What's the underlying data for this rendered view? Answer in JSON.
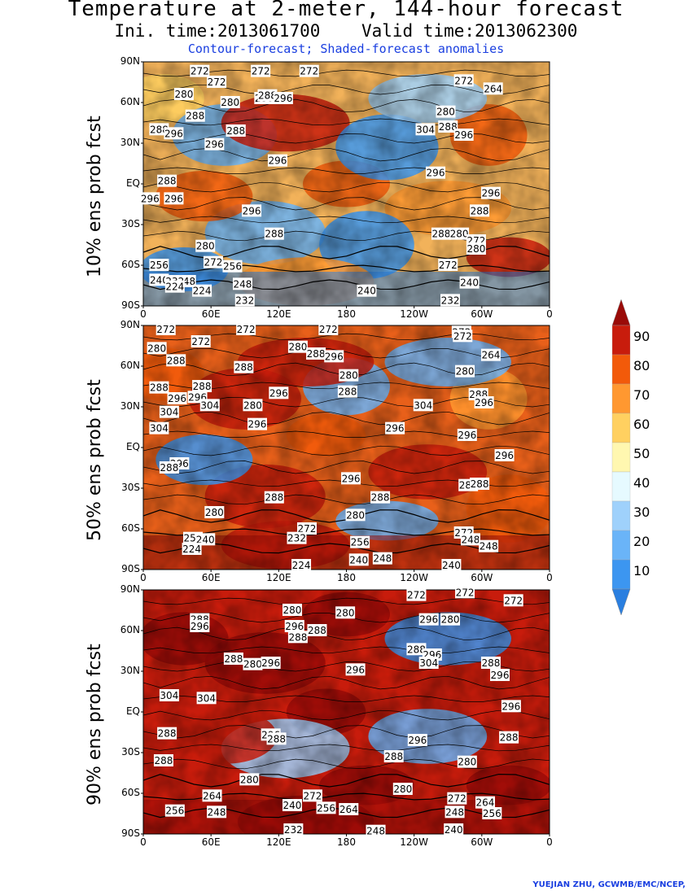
{
  "header": {
    "title": "Temperature at 2-meter, 144-hour forecast",
    "subtitle": "Ini. time:2013061700    Valid time:2013062300",
    "description": "Contour-forecast; Shaded-forecast anomalies"
  },
  "credit": "YUEJIAN ZHU, GCWMB/EMC/NCEP,",
  "chart_data": [
    {
      "type": "heatmap",
      "ylabel": "10% ens prob fcst",
      "yticks": [
        "90N",
        "60N",
        "30N",
        "EQ",
        "30S",
        "60S",
        "90S"
      ],
      "xticks": [
        "0",
        "60E",
        "120E",
        "180",
        "120W",
        "60W",
        "0"
      ],
      "contour_labels": [
        {
          "text": "272",
          "lon": 50,
          "lat": 83
        },
        {
          "text": "272",
          "lon": 65,
          "lat": 75
        },
        {
          "text": "272",
          "lon": 104,
          "lat": 83
        },
        {
          "text": "272",
          "lon": 147,
          "lat": 83
        },
        {
          "text": "272",
          "lon": -76,
          "lat": 76
        },
        {
          "text": "264",
          "lon": -50,
          "lat": 70
        },
        {
          "text": "280",
          "lon": 36,
          "lat": 66
        },
        {
          "text": "288",
          "lon": 46,
          "lat": 50
        },
        {
          "text": "288",
          "lon": 14,
          "lat": 40
        },
        {
          "text": "296",
          "lon": 27,
          "lat": 37
        },
        {
          "text": "280",
          "lon": 77,
          "lat": 60
        },
        {
          "text": "288",
          "lon": 82,
          "lat": 39
        },
        {
          "text": "296",
          "lon": 63,
          "lat": 29
        },
        {
          "text": "280",
          "lon": 107,
          "lat": 63
        },
        {
          "text": "288",
          "lon": 110,
          "lat": 65
        },
        {
          "text": "288",
          "lon": 82,
          "lat": 39
        },
        {
          "text": "296",
          "lon": 124,
          "lat": 63
        },
        {
          "text": "304",
          "lon": -110,
          "lat": 40
        },
        {
          "text": "288",
          "lon": -90,
          "lat": 42
        },
        {
          "text": "296",
          "lon": -76,
          "lat": 36
        },
        {
          "text": "280",
          "lon": -92,
          "lat": 53
        },
        {
          "text": "296",
          "lon": 119,
          "lat": 17
        },
        {
          "text": "296",
          "lon": -101,
          "lat": 8
        },
        {
          "text": "296",
          "lon": -52,
          "lat": -7
        },
        {
          "text": "288",
          "lon": 21,
          "lat": 2
        },
        {
          "text": "296",
          "lon": 6,
          "lat": -11
        },
        {
          "text": "296",
          "lon": 27,
          "lat": -11
        },
        {
          "text": "296",
          "lon": 96,
          "lat": -20
        },
        {
          "text": "288",
          "lon": 116,
          "lat": -37
        },
        {
          "text": "288",
          "lon": -62,
          "lat": -20
        },
        {
          "text": "288",
          "lon": -96,
          "lat": -37
        },
        {
          "text": "280",
          "lon": -80,
          "lat": -37
        },
        {
          "text": "272",
          "lon": -65,
          "lat": -42
        },
        {
          "text": "280",
          "lon": 55,
          "lat": -46
        },
        {
          "text": "280",
          "lon": -65,
          "lat": -48
        },
        {
          "text": "256",
          "lon": 14,
          "lat": -60
        },
        {
          "text": "272",
          "lon": 62,
          "lat": -58
        },
        {
          "text": "256",
          "lon": 79,
          "lat": -61
        },
        {
          "text": "272",
          "lon": -90,
          "lat": -60
        },
        {
          "text": "248",
          "lon": 38,
          "lat": -72
        },
        {
          "text": "240",
          "lon": 14,
          "lat": -71
        },
        {
          "text": "232",
          "lon": 28,
          "lat": -72
        },
        {
          "text": "224",
          "lon": 28,
          "lat": -76
        },
        {
          "text": "224",
          "lon": 52,
          "lat": -79
        },
        {
          "text": "248",
          "lon": 88,
          "lat": -74
        },
        {
          "text": "240",
          "lon": -162,
          "lat": -79
        },
        {
          "text": "232",
          "lon": 90,
          "lat": -86
        },
        {
          "text": "232",
          "lon": -88,
          "lat": -86
        },
        {
          "text": "240",
          "lon": -71,
          "lat": -73
        }
      ]
    },
    {
      "type": "heatmap",
      "ylabel": "50% ens prob fcst",
      "yticks": [
        "90N",
        "60N",
        "30N",
        "EQ",
        "30S",
        "60S",
        "90S"
      ],
      "xticks": [
        "0",
        "60E",
        "120E",
        "180",
        "120W",
        "60W",
        "0"
      ],
      "contour_labels": [
        {
          "text": "272",
          "lon": 20,
          "lat": 87
        },
        {
          "text": "272",
          "lon": 51,
          "lat": 78
        },
        {
          "text": "272",
          "lon": 91,
          "lat": 87
        },
        {
          "text": "272",
          "lon": 164,
          "lat": 87
        },
        {
          "text": "272",
          "lon": -78,
          "lat": 85
        },
        {
          "text": "272",
          "lon": -77,
          "lat": 82
        },
        {
          "text": "264",
          "lon": -52,
          "lat": 68
        },
        {
          "text": "280",
          "lon": 12,
          "lat": 73
        },
        {
          "text": "288",
          "lon": 29,
          "lat": 64
        },
        {
          "text": "288",
          "lon": 89,
          "lat": 59
        },
        {
          "text": "280",
          "lon": 137,
          "lat": 74
        },
        {
          "text": "288",
          "lon": 153,
          "lat": 69
        },
        {
          "text": "296",
          "lon": 169,
          "lat": 67
        },
        {
          "text": "280",
          "lon": 182,
          "lat": 53
        },
        {
          "text": "288",
          "lon": -179,
          "lat": 41
        },
        {
          "text": "280",
          "lon": -75,
          "lat": 56
        },
        {
          "text": "288",
          "lon": -63,
          "lat": 39
        },
        {
          "text": "296",
          "lon": -58,
          "lat": 33
        },
        {
          "text": "288",
          "lon": 14,
          "lat": 44
        },
        {
          "text": "296",
          "lon": 48,
          "lat": 37
        },
        {
          "text": "288",
          "lon": 52,
          "lat": 45
        },
        {
          "text": "304",
          "lon": 59,
          "lat": 31
        },
        {
          "text": "296",
          "lon": 30,
          "lat": 36
        },
        {
          "text": "304",
          "lon": 23,
          "lat": 26
        },
        {
          "text": "280",
          "lon": 97,
          "lat": 31
        },
        {
          "text": "296",
          "lon": 120,
          "lat": 40
        },
        {
          "text": "304",
          "lon": -112,
          "lat": 31
        },
        {
          "text": "296",
          "lon": 101,
          "lat": 17
        },
        {
          "text": "296",
          "lon": -137,
          "lat": 14
        },
        {
          "text": "304",
          "lon": 14,
          "lat": 14
        },
        {
          "text": "296",
          "lon": -73,
          "lat": 9
        },
        {
          "text": "296",
          "lon": -40,
          "lat": -6
        },
        {
          "text": "296",
          "lon": 32,
          "lat": -12
        },
        {
          "text": "288",
          "lon": 23,
          "lat": -15
        },
        {
          "text": "296",
          "lon": -176,
          "lat": -23
        },
        {
          "text": "288",
          "lon": 116,
          "lat": -37
        },
        {
          "text": "288",
          "lon": -150,
          "lat": -37
        },
        {
          "text": "288",
          "lon": -72,
          "lat": -28
        },
        {
          "text": "288",
          "lon": -62,
          "lat": -27
        },
        {
          "text": "280",
          "lon": 63,
          "lat": -48
        },
        {
          "text": "280",
          "lon": -172,
          "lat": -50
        },
        {
          "text": "272",
          "lon": 145,
          "lat": -60
        },
        {
          "text": "272",
          "lon": -76,
          "lat": -63
        },
        {
          "text": "248",
          "lon": -70,
          "lat": -68
        },
        {
          "text": "248",
          "lon": -54,
          "lat": -73
        },
        {
          "text": "256",
          "lon": 44,
          "lat": -67
        },
        {
          "text": "240",
          "lon": 55,
          "lat": -68
        },
        {
          "text": "224",
          "lon": 43,
          "lat": -75
        },
        {
          "text": "232",
          "lon": 136,
          "lat": -67
        },
        {
          "text": "256",
          "lon": -168,
          "lat": -70
        },
        {
          "text": "240",
          "lon": -169,
          "lat": -83
        },
        {
          "text": "248",
          "lon": -148,
          "lat": -82
        },
        {
          "text": "224",
          "lon": 140,
          "lat": -87
        },
        {
          "text": "240",
          "lon": -87,
          "lat": -87
        }
      ]
    },
    {
      "type": "heatmap",
      "ylabel": "90% ens prob fcst",
      "yticks": [
        "90N",
        "60N",
        "30N",
        "EQ",
        "30S",
        "60S",
        "90S"
      ],
      "xticks": [
        "0",
        "60E",
        "120E",
        "180",
        "120W",
        "60W",
        "0"
      ],
      "contour_labels": [
        {
          "text": "272",
          "lon": -118,
          "lat": 86
        },
        {
          "text": "272",
          "lon": -75,
          "lat": 88
        },
        {
          "text": "272",
          "lon": -32,
          "lat": 82
        },
        {
          "text": "280",
          "lon": 132,
          "lat": 75
        },
        {
          "text": "288",
          "lon": 50,
          "lat": 68
        },
        {
          "text": "296",
          "lon": 50,
          "lat": 63
        },
        {
          "text": "296",
          "lon": 134,
          "lat": 63
        },
        {
          "text": "288",
          "lon": 154,
          "lat": 60
        },
        {
          "text": "280",
          "lon": 179,
          "lat": 73
        },
        {
          "text": "296",
          "lon": -107,
          "lat": 68
        },
        {
          "text": "280",
          "lon": -88,
          "lat": 68
        },
        {
          "text": "288",
          "lon": -118,
          "lat": 46
        },
        {
          "text": "296",
          "lon": -104,
          "lat": 42
        },
        {
          "text": "304",
          "lon": -107,
          "lat": 36
        },
        {
          "text": "288",
          "lon": -52,
          "lat": 36
        },
        {
          "text": "296",
          "lon": -44,
          "lat": 27
        },
        {
          "text": "280",
          "lon": 97,
          "lat": 35
        },
        {
          "text": "288",
          "lon": 80,
          "lat": 39
        },
        {
          "text": "296",
          "lon": 113,
          "lat": 36
        },
        {
          "text": "288",
          "lon": 137,
          "lat": 55
        },
        {
          "text": "296",
          "lon": -172,
          "lat": 31
        },
        {
          "text": "304",
          "lon": 56,
          "lat": 10
        },
        {
          "text": "304",
          "lon": 23,
          "lat": 12
        },
        {
          "text": "288",
          "lon": 21,
          "lat": -16
        },
        {
          "text": "296",
          "lon": 113,
          "lat": -17
        },
        {
          "text": "288",
          "lon": 118,
          "lat": -20
        },
        {
          "text": "296",
          "lon": -117,
          "lat": -21
        },
        {
          "text": "288",
          "lon": -36,
          "lat": -19
        },
        {
          "text": "296",
          "lon": -34,
          "lat": 4
        },
        {
          "text": "288",
          "lon": -138,
          "lat": -33
        },
        {
          "text": "280",
          "lon": -73,
          "lat": -37
        },
        {
          "text": "288",
          "lon": 18,
          "lat": -36
        },
        {
          "text": "280",
          "lon": -130,
          "lat": -57
        },
        {
          "text": "280",
          "lon": 94,
          "lat": -50
        },
        {
          "text": "272",
          "lon": 150,
          "lat": -62
        },
        {
          "text": "264",
          "lon": 61,
          "lat": -62
        },
        {
          "text": "256",
          "lon": 28,
          "lat": -73
        },
        {
          "text": "248",
          "lon": 65,
          "lat": -74
        },
        {
          "text": "240",
          "lon": 132,
          "lat": -69
        },
        {
          "text": "256",
          "lon": 162,
          "lat": -71
        },
        {
          "text": "264",
          "lon": -178,
          "lat": -72
        },
        {
          "text": "272",
          "lon": -82,
          "lat": -64
        },
        {
          "text": "264",
          "lon": -57,
          "lat": -67
        },
        {
          "text": "256",
          "lon": -51,
          "lat": -75
        },
        {
          "text": "248",
          "lon": -84,
          "lat": -74
        },
        {
          "text": "232",
          "lon": 133,
          "lat": -87
        },
        {
          "text": "248",
          "lon": -154,
          "lat": -88
        },
        {
          "text": "240",
          "lon": -85,
          "lat": -87
        }
      ]
    }
  ],
  "colorbar": {
    "labels": [
      "10",
      "20",
      "30",
      "40",
      "50",
      "60",
      "70",
      "80",
      "90"
    ],
    "colors": [
      "#2a7fe0",
      "#3c96f0",
      "#6ab4f8",
      "#9fd1fb",
      "#e6faff",
      "#fff7b0",
      "#ffd060",
      "#ff9830",
      "#f25a0a",
      "#c81c0c",
      "#9a0b08"
    ]
  }
}
